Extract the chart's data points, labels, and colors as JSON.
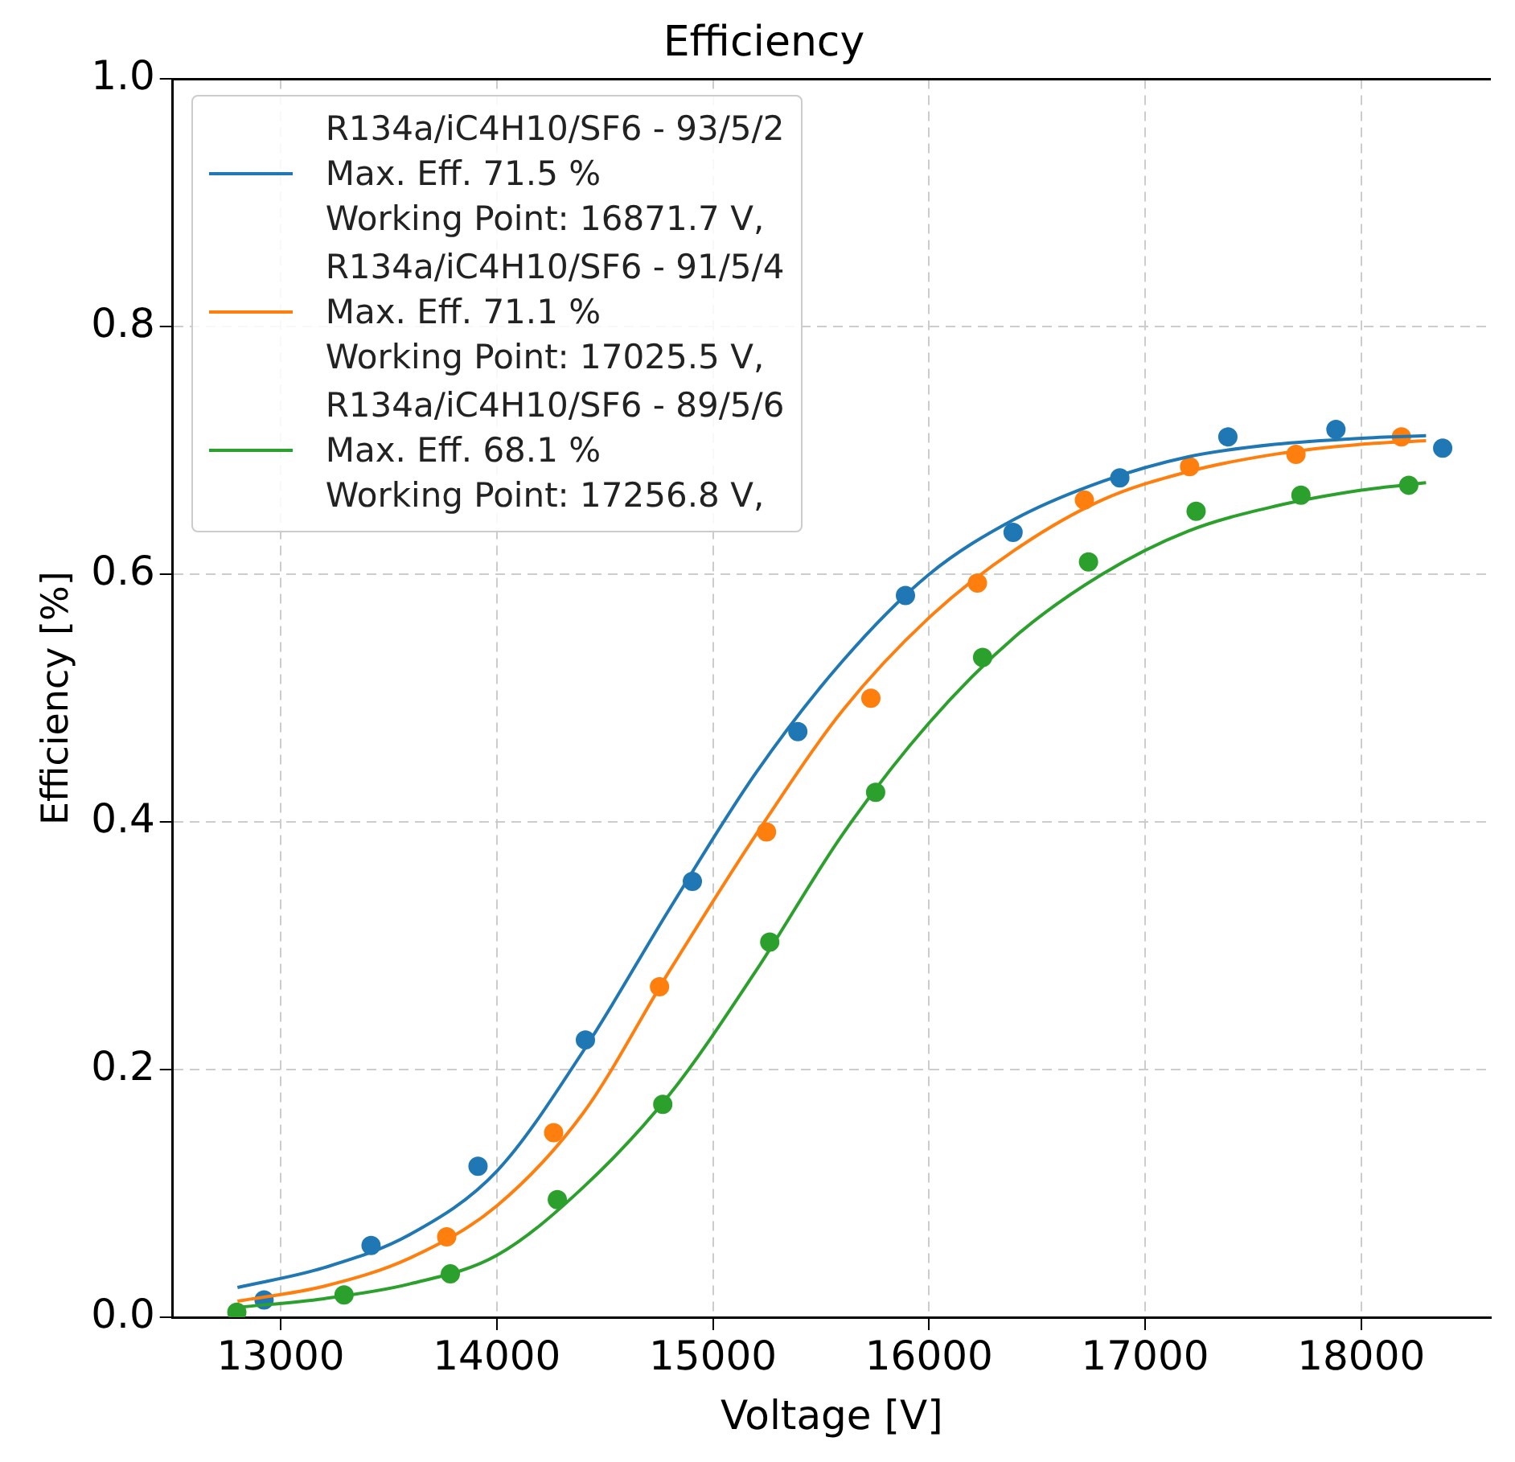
{
  "chart_data": {
    "type": "scatter",
    "title": "Efficiency",
    "xlabel": "Voltage [V]",
    "ylabel": "Efficiency [%]",
    "xlim": [
      12500,
      18600
    ],
    "xticks": [
      13000,
      14000,
      15000,
      16000,
      17000,
      18000
    ],
    "ylim": [
      0,
      1
    ],
    "yticks": [
      {
        "value": 0,
        "label": "0.0"
      },
      0.2,
      0.4,
      0.6,
      0.8,
      {
        "value": 1,
        "label": "1.0"
      }
    ],
    "grid": true,
    "legend": "top left",
    "marker": "circle",
    "series": [
      {
        "type": "scatter",
        "color": "#1f77b4",
        "x": [
          12923,
          13418,
          13913,
          14410,
          14905,
          15393,
          15891,
          16389,
          16883,
          17383,
          17883,
          18377
        ],
        "values": [
          0.014,
          0.058,
          0.122,
          0.224,
          0.352,
          0.473,
          0.583,
          0.634,
          0.678,
          0.711,
          0.717,
          0.702
        ]
      },
      {
        "type": "scatter",
        "color": "#ff7f0e",
        "x": [
          13768,
          14263,
          14753,
          15248,
          15731,
          16224,
          16719,
          17206,
          17698,
          18186
        ],
        "values": [
          0.065,
          0.149,
          0.267,
          0.392,
          0.5,
          0.593,
          0.66,
          0.687,
          0.697,
          0.711
        ]
      },
      {
        "type": "scatter",
        "color": "#2ca02c",
        "x": [
          12797,
          13293,
          13785,
          14280,
          14768,
          15263,
          15753,
          16248,
          16738,
          17236,
          17721,
          18220
        ],
        "values": [
          0.004,
          0.018,
          0.035,
          0.095,
          0.172,
          0.303,
          0.424,
          0.533,
          0.61,
          0.651,
          0.664,
          0.672
        ]
      },
      {
        "type": "line",
        "marker": "none",
        "name": "R134a/iC4H10/SF6 - 93/5/2\nMax. Eff. 71.5 %\nWorking Point: 16871.7 V,",
        "color": "#1f77b4",
        "x": [
          12800,
          13200,
          13600,
          14000,
          14400,
          14800,
          15200,
          15600,
          16000,
          16400,
          16800,
          17200,
          17600,
          18000,
          18300
        ],
        "values": [
          0.024,
          0.04,
          0.067,
          0.118,
          0.215,
          0.33,
          0.44,
          0.53,
          0.6,
          0.645,
          0.675,
          0.695,
          0.705,
          0.71,
          0.712
        ]
      },
      {
        "type": "line",
        "marker": "none",
        "name": "R134a/iC4H10/SF6 - 91/5/4\nMax. Eff. 71.1 %\nWorking Point: 17025.5 V,",
        "color": "#ff7f0e",
        "x": [
          12800,
          13200,
          13600,
          14000,
          14400,
          14800,
          15200,
          15600,
          16000,
          16400,
          16800,
          17200,
          17600,
          18000,
          18300
        ],
        "values": [
          0.013,
          0.025,
          0.048,
          0.09,
          0.165,
          0.28,
          0.39,
          0.49,
          0.565,
          0.62,
          0.66,
          0.683,
          0.697,
          0.705,
          0.708
        ]
      },
      {
        "type": "line",
        "marker": "none",
        "name": "R134a/iC4H10/SF6 - 89/5/6\nMax. Eff. 68.1 %\nWorking Point: 17256.8 V,",
        "color": "#2ca02c",
        "x": [
          12800,
          13200,
          13600,
          14000,
          14400,
          14800,
          15200,
          15600,
          16000,
          16400,
          16800,
          17200,
          17600,
          18000,
          18300
        ],
        "values": [
          0.008,
          0.015,
          0.027,
          0.05,
          0.105,
          0.18,
          0.28,
          0.39,
          0.48,
          0.55,
          0.6,
          0.635,
          0.655,
          0.668,
          0.674
        ]
      }
    ]
  }
}
